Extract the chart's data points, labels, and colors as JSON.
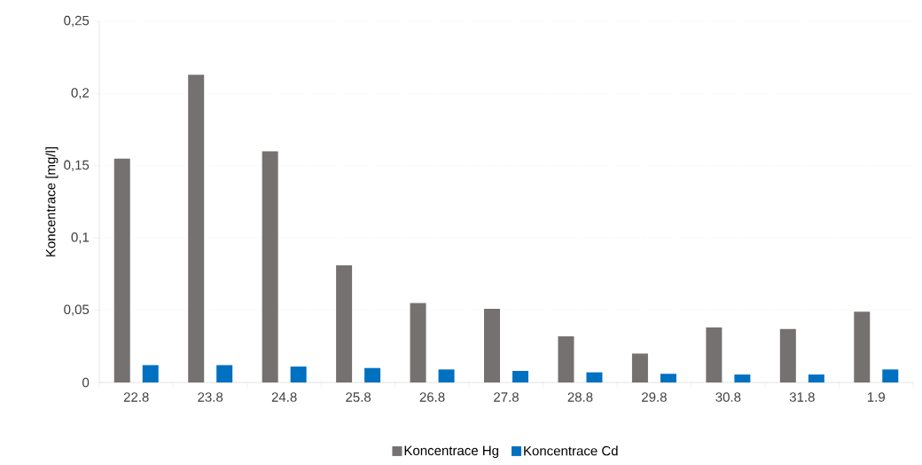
{
  "chart_data": {
    "type": "bar",
    "ylabel": "Koncentrace [mg/l]",
    "categories": [
      "22.8",
      "23.8",
      "24.8",
      "25.8",
      "26.8",
      "27.8",
      "28.8",
      "29.8",
      "30.8",
      "31.8",
      "1.9"
    ],
    "series": [
      {
        "name": "Koncentrace Hg",
        "color": "#767171",
        "values": [
          0.155,
          0.213,
          0.16,
          0.081,
          0.055,
          0.051,
          0.032,
          0.02,
          0.038,
          0.037,
          0.049
        ]
      },
      {
        "name": "Koncentrace Cd",
        "color": "#0070c0",
        "values": [
          0.012,
          0.012,
          0.011,
          0.01,
          0.009,
          0.008,
          0.007,
          0.006,
          0.0055,
          0.0055,
          0.009
        ]
      }
    ],
    "ylim": [
      0,
      0.25
    ],
    "yticks": [
      0,
      {
        "value": 0.05,
        "label": "0,05"
      },
      {
        "value": 0.1,
        "label": "0,1"
      },
      {
        "value": 0.15,
        "label": "0,15"
      },
      {
        "value": 0.2,
        "label": "0,2"
      },
      {
        "value": 0.25,
        "label": "0,25"
      }
    ],
    "grid": "y",
    "legend": "bottom"
  }
}
